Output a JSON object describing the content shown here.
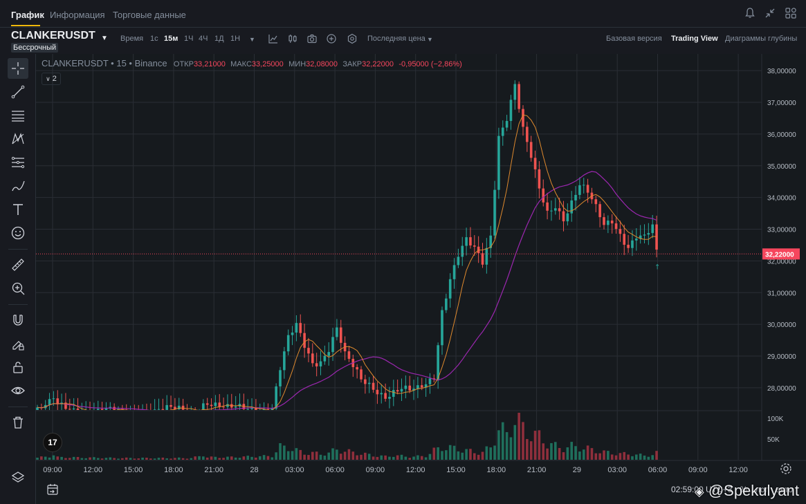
{
  "tabs": [
    {
      "label": "График",
      "active": true
    },
    {
      "label": "Информация",
      "active": false
    },
    {
      "label": "Торговые данные",
      "active": false
    }
  ],
  "header": {
    "symbol": "CLANKERUSDT",
    "contract_type": "Бессрочный",
    "time_label": "Время",
    "intervals": [
      {
        "label": "1с",
        "active": false
      },
      {
        "label": "15м",
        "active": true
      },
      {
        "label": "1Ч",
        "active": false
      },
      {
        "label": "4Ч",
        "active": false
      },
      {
        "label": "1Д",
        "active": false
      },
      {
        "label": "1Н",
        "active": false
      }
    ],
    "price_type": "Последняя цена",
    "views": [
      {
        "label": "Базовая версия",
        "active": false
      },
      {
        "label": "Trading View",
        "active": true
      },
      {
        "label": "Диаграммы глубины",
        "active": false
      }
    ]
  },
  "legend": {
    "symbol": "CLANKERUSDT • 15 • Binance",
    "open_label": "ОТКР",
    "open": "33,21000",
    "high_label": "МАКС",
    "high": "33,25000",
    "low_label": "МИН",
    "low": "32,08000",
    "close_label": "ЗАКР",
    "close": "32,22000",
    "change": "-0,95000 (−2,86%)",
    "indicators_count": "2"
  },
  "icons": {
    "top_right": [
      "bell-icon",
      "collapse-icon",
      "layout-grid-icon"
    ],
    "toolbar": [
      "indicators-icon",
      "candle-type-icon",
      "camera-icon",
      "plus-circle-icon",
      "settings-hex-icon"
    ],
    "left_tools": [
      "crosshair-icon",
      "trend-line-icon",
      "horizontal-lines-icon",
      "pattern-icon",
      "fib-icon",
      "brush-icon",
      "text-icon",
      "emoji-icon",
      "ruler-icon",
      "zoom-icon",
      "magnet-icon",
      "lock-drawing-icon",
      "unlock-icon",
      "eye-icon",
      "trash-icon",
      "layers-icon"
    ]
  },
  "colors": {
    "up": "#26a69a",
    "down": "#ef5350",
    "ma_fast": "#e08a2e",
    "ma_slow": "#9c27b0",
    "price_line": "#f6465d",
    "accent": "#f0b90b"
  },
  "bottom": {
    "status_text": "02:59:00 UTC+3",
    "percent_label": "%",
    "log_label": "лог",
    "auto_label": "авто",
    "watermark": "@Spekulyant",
    "tv_logo": "17"
  },
  "chart_data": {
    "type": "candlestick",
    "price_ylim": [
      27.3,
      38.2
    ],
    "volume_ylim": [
      0,
      115000
    ],
    "price_ticks": [
      "38,00000",
      "37,00000",
      "36,00000",
      "35,00000",
      "34,00000",
      "33,00000",
      "32,00000",
      "31,00000",
      "30,00000",
      "29,00000",
      "28,00000"
    ],
    "price_tick_values": [
      38,
      37,
      36,
      35,
      34,
      33,
      32,
      31,
      30,
      29,
      28
    ],
    "volume_ticks": [
      "100K",
      "50K"
    ],
    "volume_tick_values": [
      100000,
      50000
    ],
    "x_ticks": [
      "09:00",
      "12:00",
      "15:00",
      "18:00",
      "21:00",
      "28",
      "03:00",
      "06:00",
      "09:00",
      "12:00",
      "15:00",
      "18:00",
      "21:00",
      "29",
      "03:00",
      "06:00",
      "09:00",
      "12:00"
    ],
    "last_price": 32.22,
    "last_price_label": "32,22000",
    "anchors": [
      [
        0,
        27.3,
        5000
      ],
      [
        3,
        27.45,
        8000
      ],
      [
        4,
        27.6,
        12000
      ],
      [
        5,
        27.4,
        6000
      ],
      [
        20,
        27.2,
        4000
      ],
      [
        30,
        27.3,
        4000
      ],
      [
        38,
        27.25,
        4000
      ],
      [
        40,
        27.4,
        8000
      ],
      [
        41,
        27.55,
        12000
      ],
      [
        42,
        27.6,
        6000
      ],
      [
        47,
        27.3,
        6000
      ],
      [
        58,
        27.4,
        9000
      ],
      [
        60,
        28.6,
        30000
      ],
      [
        62,
        29.5,
        30000
      ],
      [
        64,
        29.9,
        22000
      ],
      [
        66,
        29.3,
        16000
      ],
      [
        68,
        28.8,
        16000
      ],
      [
        70,
        28.9,
        14000
      ],
      [
        72,
        29.3,
        16000
      ],
      [
        74,
        29.9,
        25000
      ],
      [
        76,
        29.0,
        20000
      ],
      [
        78,
        28.6,
        18000
      ],
      [
        80,
        28.2,
        14000
      ],
      [
        82,
        28.1,
        12000
      ],
      [
        84,
        27.95,
        9000
      ],
      [
        86,
        27.8,
        8000
      ],
      [
        88,
        27.9,
        10000
      ],
      [
        90,
        27.95,
        9000
      ],
      [
        92,
        27.85,
        7000
      ],
      [
        94,
        27.9,
        8000
      ],
      [
        96,
        28.1,
        9000
      ],
      [
        98,
        28.4,
        22000
      ],
      [
        100,
        30.5,
        30000
      ],
      [
        102,
        31.5,
        28000
      ],
      [
        104,
        32.2,
        26000
      ],
      [
        106,
        32.6,
        22000
      ],
      [
        108,
        32.3,
        18000
      ],
      [
        110,
        31.9,
        18000
      ],
      [
        112,
        32.8,
        30000
      ],
      [
        114,
        36.0,
        75000
      ],
      [
        116,
        36.6,
        60000
      ],
      [
        118,
        37.6,
        100000
      ],
      [
        120,
        36.1,
        75000
      ],
      [
        122,
        35.2,
        60000
      ],
      [
        124,
        34.2,
        55000
      ],
      [
        126,
        33.5,
        40000
      ],
      [
        128,
        33.8,
        32000
      ],
      [
        130,
        33.4,
        28000
      ],
      [
        132,
        33.9,
        32000
      ],
      [
        134,
        34.4,
        30000
      ],
      [
        136,
        34.1,
        26000
      ],
      [
        138,
        33.6,
        22000
      ],
      [
        140,
        33.1,
        18000
      ],
      [
        142,
        33.3,
        16000
      ],
      [
        144,
        32.9,
        14000
      ],
      [
        146,
        32.5,
        14000
      ],
      [
        148,
        32.8,
        12000
      ],
      [
        150,
        32.7,
        10000
      ],
      [
        152,
        33.0,
        12000
      ],
      [
        153,
        32.2,
        16000
      ]
    ]
  }
}
